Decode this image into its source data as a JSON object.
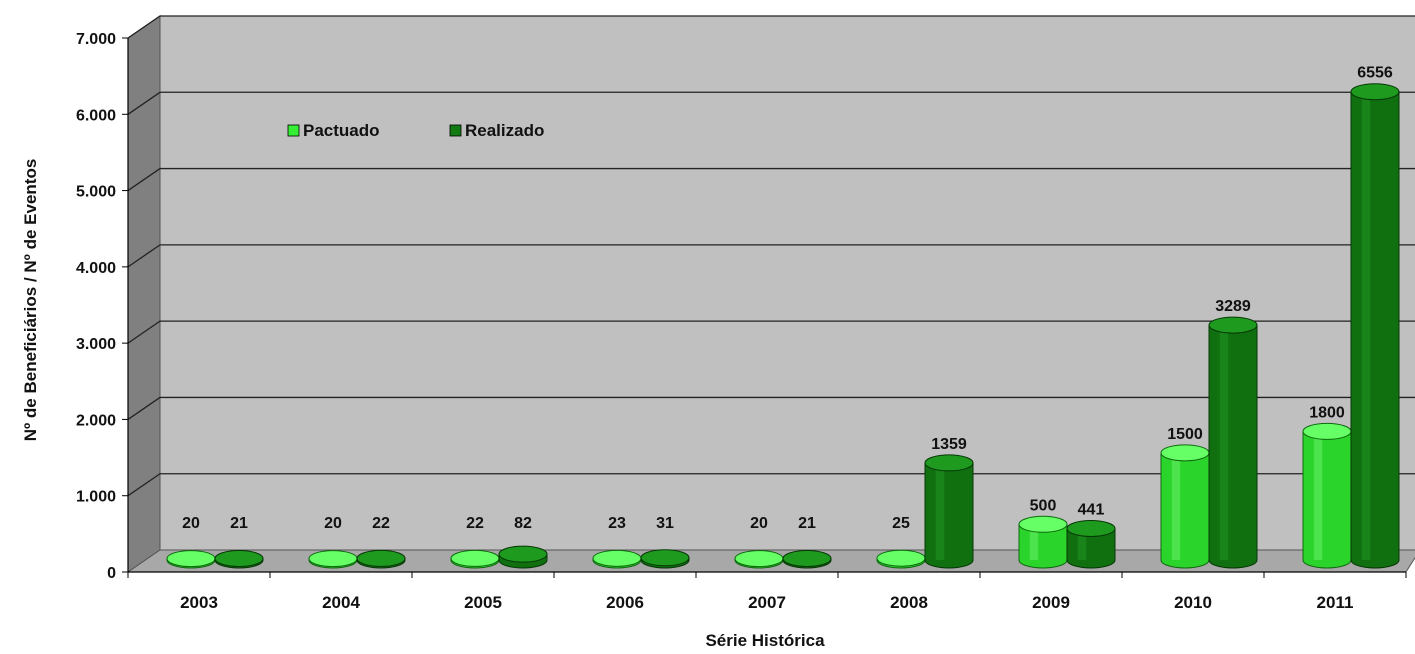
{
  "chart_data": {
    "type": "bar",
    "title": "",
    "xlabel": "Série Histórica",
    "ylabel": "Nº de Beneficiários  / Nº de Eventos",
    "categories": [
      "2003",
      "2004",
      "2005",
      "2006",
      "2007",
      "2008",
      "2009",
      "2010",
      "2011"
    ],
    "series": [
      {
        "name": "Pactuado",
        "values": [
          20,
          20,
          22,
          23,
          20,
          25,
          500,
          1500,
          1800
        ],
        "color": "#33ee33"
      },
      {
        "name": "Realizado",
        "values": [
          21,
          22,
          82,
          31,
          21,
          1359,
          441,
          3289,
          6556
        ],
        "color": "#127a12"
      }
    ],
    "data_labels": [
      [
        "20",
        "20",
        "22",
        "23",
        "20",
        "25",
        "500",
        "1500",
        "1800"
      ],
      [
        "21",
        "22",
        "82",
        "31",
        "21",
        "1359",
        "441",
        "3289",
        "6556"
      ]
    ],
    "ylim": [
      0,
      7000
    ],
    "yticks": [
      "0",
      "1.000",
      "2.000",
      "3.000",
      "4.000",
      "5.000",
      "6.000",
      "7.000"
    ],
    "grid": true,
    "legend": "top-left",
    "style": "3d-cylinder",
    "colors": {
      "wall": "#c0c0c0",
      "side_wall": "#808080",
      "floor": "#a8a8a8"
    }
  }
}
